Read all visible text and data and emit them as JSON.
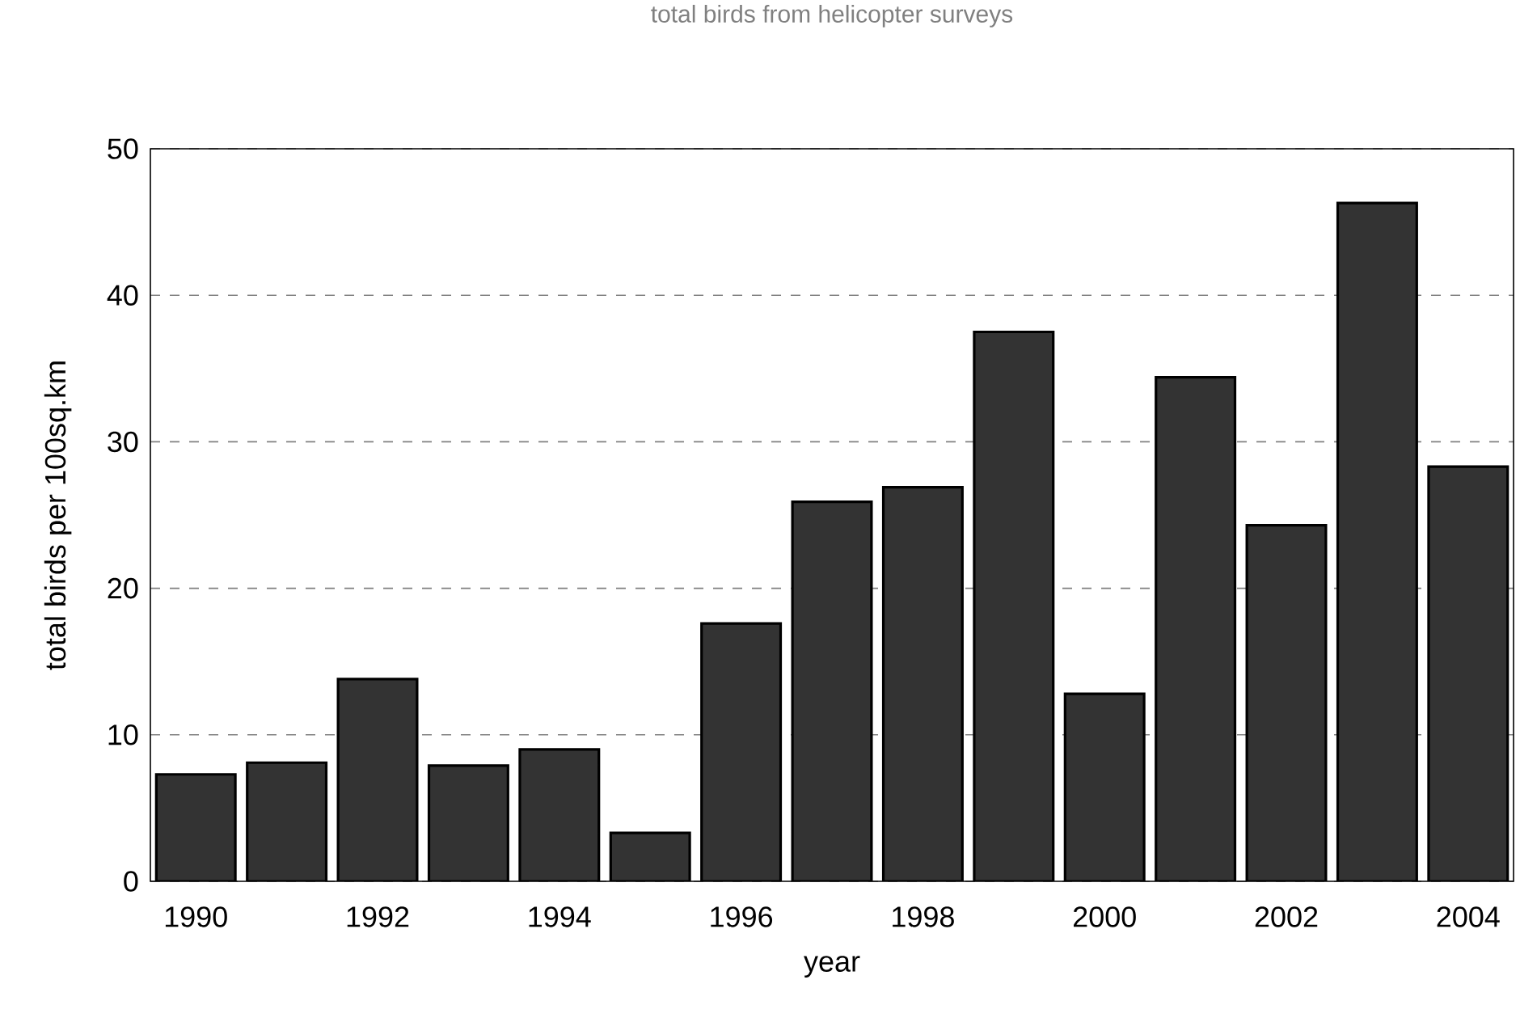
{
  "chart_data": {
    "type": "bar",
    "title": "total birds from helicopter surveys",
    "xlabel": "year",
    "ylabel": "total birds per 100sq.km",
    "categories": [
      "1990",
      null,
      "1992",
      null,
      "1994",
      null,
      "1996",
      null,
      "1998",
      null,
      "2000",
      null,
      "2002",
      null,
      "2004"
    ],
    "values": [
      7.3,
      8.1,
      13.8,
      7.9,
      9.0,
      3.3,
      17.6,
      25.9,
      26.9,
      37.5,
      12.8,
      34.4,
      24.3,
      46.3,
      28.3
    ],
    "color": "#333333",
    "ylim": [
      0,
      50
    ],
    "yticks": [
      0,
      10,
      20,
      30,
      40,
      50
    ],
    "grid": "y"
  }
}
